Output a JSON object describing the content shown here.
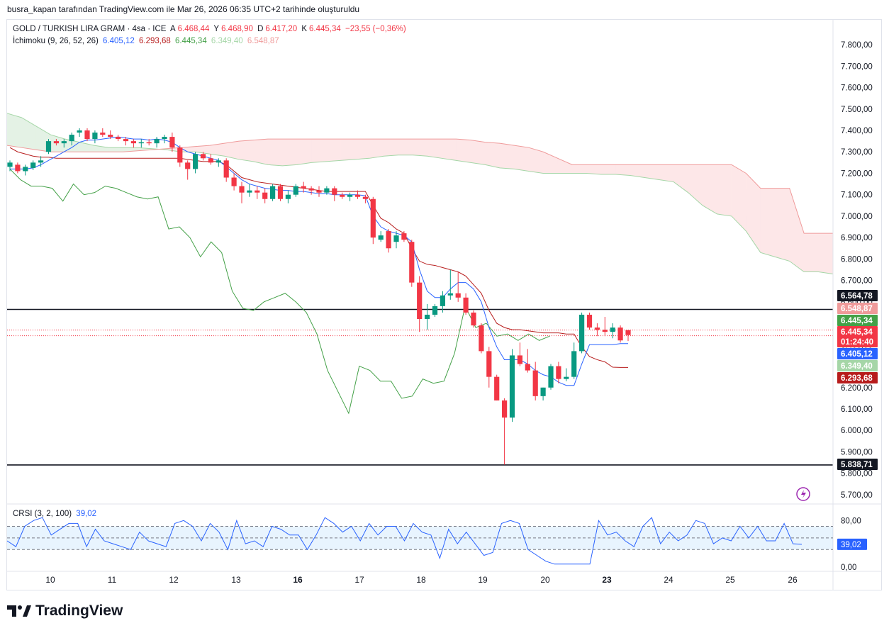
{
  "header": {
    "caption": "busra_kapan tarafından TradingView.com ile Mar 26, 2026 06:35 UTC+2 tarihinde oluşturuldu"
  },
  "legend": {
    "symbol": "GOLD / TURKISH LIRA GRAM · 4sa · ICE",
    "open_label": "A",
    "open": "6.468,44",
    "high_label": "Y",
    "high": "6.468,90",
    "low_label": "D",
    "low": "6.417,20",
    "close_label": "K",
    "close": "6.445,34",
    "change": "−23,55 (−0,36%)",
    "ichimoku_name": "İchimoku (9, 26, 52, 26)",
    "ichimoku_values": [
      "6.405,12",
      "6.293,68",
      "6.445,34",
      "6.349,40",
      "6.548,87"
    ],
    "crsi_name": "CRSI (3, 2, 100)",
    "crsi_value": "39,02"
  },
  "brand": {
    "name": "TradingView"
  },
  "colors": {
    "up": "#089981",
    "down": "#f23645",
    "tenkan": "#2962ff",
    "kijun": "#b71c1c",
    "chikou": "#43a047",
    "span_a": "#a5d6a7",
    "span_b": "#ef9a9a",
    "crsi": "#2962ff"
  },
  "chart_data": [
    {
      "type": "candlestick",
      "title": "GOLD / TURKISH LIRA GRAM · 4sa · ICE",
      "x_ticks": [
        "10",
        "11",
        "12",
        "13",
        "16",
        "17",
        "18",
        "19",
        "20",
        "23",
        "24",
        "25",
        "26"
      ],
      "y_ticks": [
        "7.800,00",
        "7.700,00",
        "7.600,00",
        "7.500,00",
        "7.400,00",
        "7.300,00",
        "7.200,00",
        "7.100,00",
        "7.000,00",
        "6.900,00",
        "6.800,00",
        "6.700,00",
        "6.600,00",
        "6.500,00",
        "6.400,00",
        "6.300,00",
        "6.200,00",
        "6.100,00",
        "6.000,00",
        "5.900,00",
        "5.800,00",
        "5.700,00"
      ],
      "ylim": [
        5660,
        7840
      ],
      "horizontal_lines": [
        6564.78,
        5838.71
      ],
      "price_labels": [
        {
          "text": "6.564,78",
          "value": 6564.78,
          "color": "#131722"
        },
        {
          "text": "6.548,87",
          "value": 6548.87,
          "color": "#ef9a9a"
        },
        {
          "text": "6.445,34",
          "value": 6445.34,
          "color": "#43a047"
        },
        {
          "text": "6.445,34",
          "value": 6445.34,
          "color": "#f23645"
        },
        {
          "text": "01:24:40",
          "value": 6445.34,
          "color": "#f23645"
        },
        {
          "text": "6.405,12",
          "value": 6405.12,
          "color": "#2962ff"
        },
        {
          "text": "6.349,40",
          "value": 6349.4,
          "color": "#a5d6a7"
        },
        {
          "text": "6.293,68",
          "value": 6293.68,
          "color": "#b71c1c"
        },
        {
          "text": "5.838,71",
          "value": 5838.71,
          "color": "#131722"
        }
      ],
      "candles": [
        [
          7230,
          7260,
          7210,
          7250
        ],
        [
          7240,
          7250,
          7200,
          7210
        ],
        [
          7210,
          7240,
          7190,
          7230
        ],
        [
          7225,
          7260,
          7215,
          7250
        ],
        [
          7250,
          7280,
          7230,
          7260
        ],
        [
          7300,
          7360,
          7290,
          7350
        ],
        [
          7350,
          7360,
          7330,
          7340
        ],
        [
          7340,
          7360,
          7320,
          7350
        ],
        [
          7350,
          7390,
          7330,
          7380
        ],
        [
          7390,
          7410,
          7370,
          7400
        ],
        [
          7400,
          7410,
          7350,
          7360
        ],
        [
          7360,
          7400,
          7340,
          7390
        ],
        [
          7390,
          7410,
          7370,
          7380
        ],
        [
          7380,
          7400,
          7360,
          7370
        ],
        [
          7370,
          7380,
          7350,
          7360
        ],
        [
          7360,
          7370,
          7330,
          7350
        ],
        [
          7350,
          7360,
          7320,
          7340
        ],
        [
          7340,
          7360,
          7320,
          7345
        ],
        [
          7345,
          7360,
          7330,
          7340
        ],
        [
          7340,
          7370,
          7320,
          7360
        ],
        [
          7360,
          7380,
          7340,
          7370
        ],
        [
          7370,
          7390,
          7300,
          7320
        ],
        [
          7320,
          7330,
          7230,
          7250
        ],
        [
          7250,
          7260,
          7170,
          7220
        ],
        [
          7220,
          7300,
          7200,
          7290
        ],
        [
          7290,
          7300,
          7260,
          7270
        ],
        [
          7270,
          7290,
          7240,
          7250
        ],
        [
          7250,
          7270,
          7230,
          7260
        ],
        [
          7260,
          7270,
          7160,
          7180
        ],
        [
          7180,
          7200,
          7120,
          7140
        ],
        [
          7140,
          7160,
          7060,
          7110
        ],
        [
          7110,
          7150,
          7090,
          7120
        ],
        [
          7120,
          7140,
          7080,
          7110
        ],
        [
          7110,
          7130,
          7060,
          7080
        ],
        [
          7080,
          7150,
          7070,
          7140
        ],
        [
          7140,
          7150,
          7070,
          7080
        ],
        [
          7080,
          7120,
          7060,
          7100
        ],
        [
          7100,
          7150,
          7090,
          7140
        ],
        [
          7140,
          7160,
          7110,
          7130
        ],
        [
          7130,
          7140,
          7100,
          7120
        ],
        [
          7120,
          7140,
          7090,
          7110
        ],
        [
          7110,
          7140,
          7100,
          7130
        ],
        [
          7130,
          7140,
          7070,
          7100
        ],
        [
          7100,
          7110,
          7080,
          7090
        ],
        [
          7090,
          7110,
          7070,
          7100
        ],
        [
          7100,
          7120,
          7080,
          7090
        ],
        [
          7090,
          7100,
          7060,
          7080
        ],
        [
          7080,
          7090,
          6870,
          6900
        ],
        [
          6890,
          6930,
          6880,
          6910
        ],
        [
          6930,
          6940,
          6830,
          6850
        ],
        [
          6880,
          6930,
          6850,
          6910
        ],
        [
          6920,
          6930,
          6880,
          6890
        ],
        [
          6880,
          6890,
          6670,
          6690
        ],
        [
          6690,
          6720,
          6460,
          6520
        ],
        [
          6520,
          6590,
          6470,
          6540
        ],
        [
          6540,
          6590,
          6530,
          6580
        ],
        [
          6580,
          6650,
          6550,
          6630
        ],
        [
          6630,
          6750,
          6610,
          6640
        ],
        [
          6640,
          6740,
          6600,
          6620
        ],
        [
          6620,
          6640,
          6540,
          6550
        ],
        [
          6550,
          6560,
          6480,
          6490
        ],
        [
          6490,
          6500,
          6360,
          6370
        ],
        [
          6370,
          6390,
          6200,
          6250
        ],
        [
          6250,
          6260,
          6140,
          6140
        ],
        [
          6140,
          6150,
          5840,
          6060
        ],
        [
          6060,
          6380,
          6040,
          6350
        ],
        [
          6350,
          6410,
          6300,
          6310
        ],
        [
          6310,
          6380,
          6270,
          6280
        ],
        [
          6280,
          6320,
          6140,
          6160
        ],
        [
          6160,
          6200,
          6140,
          6200
        ],
        [
          6200,
          6310,
          6190,
          6300
        ],
        [
          6300,
          6320,
          6220,
          6240
        ],
        [
          6240,
          6290,
          6230,
          6250
        ],
        [
          6250,
          6410,
          6240,
          6370
        ],
        [
          6370,
          6550,
          6360,
          6540
        ],
        [
          6540,
          6550,
          6470,
          6480
        ],
        [
          6480,
          6500,
          6440,
          6470
        ],
        [
          6470,
          6530,
          6440,
          6460
        ],
        [
          6460,
          6500,
          6430,
          6480
        ],
        [
          6480,
          6490,
          6410,
          6420
        ],
        [
          6468,
          6469,
          6417,
          6445
        ]
      ],
      "series": [
        {
          "name": "Tenkan",
          "values": [
            7220,
            7220,
            7220,
            7225,
            7240,
            7260,
            7280,
            7300,
            7320,
            7345,
            7355,
            7355,
            7360,
            7365,
            7370,
            7365,
            7360,
            7360,
            7355,
            7360,
            7355,
            7345,
            7320,
            7300,
            7290,
            7280,
            7270,
            7260,
            7230,
            7200,
            7170,
            7150,
            7140,
            7130,
            7125,
            7120,
            7120,
            7115,
            7115,
            7110,
            7105,
            7105,
            7100,
            7100,
            7100,
            7100,
            7095,
            7000,
            6950,
            6930,
            6920,
            6910,
            6880,
            6750,
            6650,
            6620,
            6620,
            6660,
            6690,
            6690,
            6660,
            6600,
            6480,
            6390,
            6330,
            6330,
            6330,
            6310,
            6280,
            6260,
            6250,
            6225,
            6210,
            6210,
            6310,
            6400,
            6400,
            6400,
            6400,
            6405,
            6405
          ]
        },
        {
          "name": "Kijun",
          "values": [
            7320,
            7300,
            7290,
            7280,
            7275,
            7275,
            7270,
            7270,
            7270,
            7270,
            7270,
            7270,
            7270,
            7270,
            7270,
            7270,
            7270,
            7270,
            7270,
            7270,
            7270,
            7270,
            7270,
            7265,
            7260,
            7255,
            7255,
            7255,
            7240,
            7210,
            7180,
            7170,
            7160,
            7155,
            7150,
            7145,
            7140,
            7135,
            7130,
            7125,
            7120,
            7115,
            7115,
            7115,
            7115,
            7115,
            7115,
            7050,
            6990,
            6970,
            6940,
            6920,
            6850,
            6790,
            6775,
            6770,
            6760,
            6750,
            6740,
            6720,
            6680,
            6640,
            6560,
            6500,
            6480,
            6470,
            6470,
            6465,
            6460,
            6455,
            6455,
            6455,
            6450,
            6450,
            6390,
            6345,
            6330,
            6320,
            6295,
            6294,
            6294
          ]
        },
        {
          "name": "Chikou",
          "values": [
            7220,
            7170,
            7140,
            7140,
            7130,
            7070,
            7150,
            7100,
            7110,
            7140,
            7130,
            7110,
            7090,
            7080,
            7090,
            6940,
            6950,
            6900,
            6810,
            6880,
            6830,
            6650,
            6570,
            6560,
            6600,
            6620,
            6640,
            6600,
            6550,
            6450,
            6280,
            6180,
            6080,
            6300,
            6280,
            6230,
            6230,
            6150,
            6160,
            6240,
            6220,
            6230,
            6360,
            6580,
            6480,
            6500,
            6440,
            6450,
            6420,
            6450,
            6420,
            6440
          ]
        },
        {
          "name": "Span A",
          "values": [
            7480,
            7460,
            7420,
            7380,
            7360,
            7345,
            7330,
            7320,
            7320,
            7320,
            7315,
            7310,
            7300,
            7300,
            7290,
            7280,
            7265,
            7255,
            7240,
            7235,
            7240,
            7250,
            7255,
            7260,
            7265,
            7270,
            7280,
            7285,
            7285,
            7280,
            7270,
            7260,
            7250,
            7240,
            7225,
            7220,
            7210,
            7200,
            7200,
            7200,
            7200,
            7195,
            7195,
            7190,
            7180,
            7170,
            7160,
            7110,
            7050,
            7010,
            7000,
            6930,
            6830,
            6810,
            6790,
            6740,
            6740,
            6730
          ]
        },
        {
          "name": "Span B",
          "values": [
            7330,
            7320,
            7310,
            7300,
            7300,
            7300,
            7300,
            7300,
            7300,
            7305,
            7310,
            7315,
            7320,
            7325,
            7330,
            7340,
            7350,
            7355,
            7360,
            7360,
            7360,
            7360,
            7360,
            7360,
            7360,
            7360,
            7360,
            7360,
            7360,
            7360,
            7360,
            7360,
            7355,
            7345,
            7340,
            7330,
            7320,
            7300,
            7270,
            7240,
            7240,
            7240,
            7240,
            7240,
            7240,
            7240,
            7240,
            7240,
            7240,
            7240,
            7240,
            7200,
            7130,
            7130,
            7130,
            6920,
            6920,
            6920
          ]
        }
      ]
    },
    {
      "type": "line",
      "title": "CRSI (3, 2, 100)",
      "y_ticks": [
        "80,00",
        "0,00"
      ],
      "ylim": [
        -5,
        95
      ],
      "band": [
        70,
        30
      ],
      "midline": 50,
      "series": [
        {
          "name": "CRSI",
          "values": [
            45,
            35,
            70,
            80,
            85,
            55,
            65,
            75,
            75,
            35,
            65,
            45,
            40,
            35,
            30,
            60,
            45,
            40,
            35,
            75,
            80,
            70,
            45,
            75,
            60,
            30,
            80,
            40,
            45,
            35,
            70,
            65,
            55,
            55,
            30,
            55,
            85,
            75,
            60,
            70,
            45,
            75,
            55,
            70,
            70,
            45,
            75,
            60,
            55,
            15,
            65,
            40,
            60,
            40,
            20,
            25,
            75,
            80,
            75,
            30,
            20,
            10,
            5,
            5,
            5,
            5,
            5,
            80,
            55,
            60,
            45,
            35,
            70,
            85,
            40,
            60,
            45,
            55,
            80,
            75,
            40,
            50,
            45,
            70,
            50,
            70,
            45,
            45,
            75,
            40,
            39
          ]
        }
      ]
    }
  ]
}
